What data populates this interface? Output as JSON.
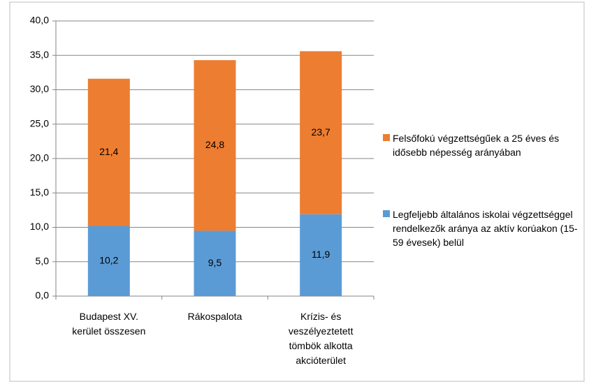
{
  "chart_data": {
    "type": "stacked_bar",
    "categories": [
      "Budapest XV. kerület összesen",
      "Rákospalota",
      "Krízis- és veszélyeztetett tömbök alkotta akcióterület"
    ],
    "series": [
      {
        "name": "Legfeljebb általános iskolai végzettséggel rendelkezők aránya az aktív korúakon (15-59 évesek) belül",
        "color": "#5b9bd5",
        "values": [
          10.2,
          9.5,
          11.9
        ],
        "value_labels": [
          "10,2",
          "9,5",
          "11,9"
        ]
      },
      {
        "name": "Felsőfokú végzettségűek a 25 éves és idősebb népesség arányában",
        "color": "#ed7d31",
        "values": [
          21.4,
          24.8,
          23.7
        ],
        "value_labels": [
          "21,4",
          "24,8",
          "23,7"
        ]
      }
    ],
    "ylim": [
      0,
      40
    ],
    "yticks": [
      {
        "value": 0,
        "label": "0,0"
      },
      {
        "value": 5,
        "label": "5,0"
      },
      {
        "value": 10,
        "label": "10,0"
      },
      {
        "value": 15,
        "label": "15,0"
      },
      {
        "value": 20,
        "label": "20,0"
      },
      {
        "value": 25,
        "label": "25,0"
      },
      {
        "value": 30,
        "label": "30,0"
      },
      {
        "value": 35,
        "label": "35,0"
      },
      {
        "value": 40,
        "label": "40,0"
      }
    ],
    "grid": true,
    "legend": "right"
  }
}
